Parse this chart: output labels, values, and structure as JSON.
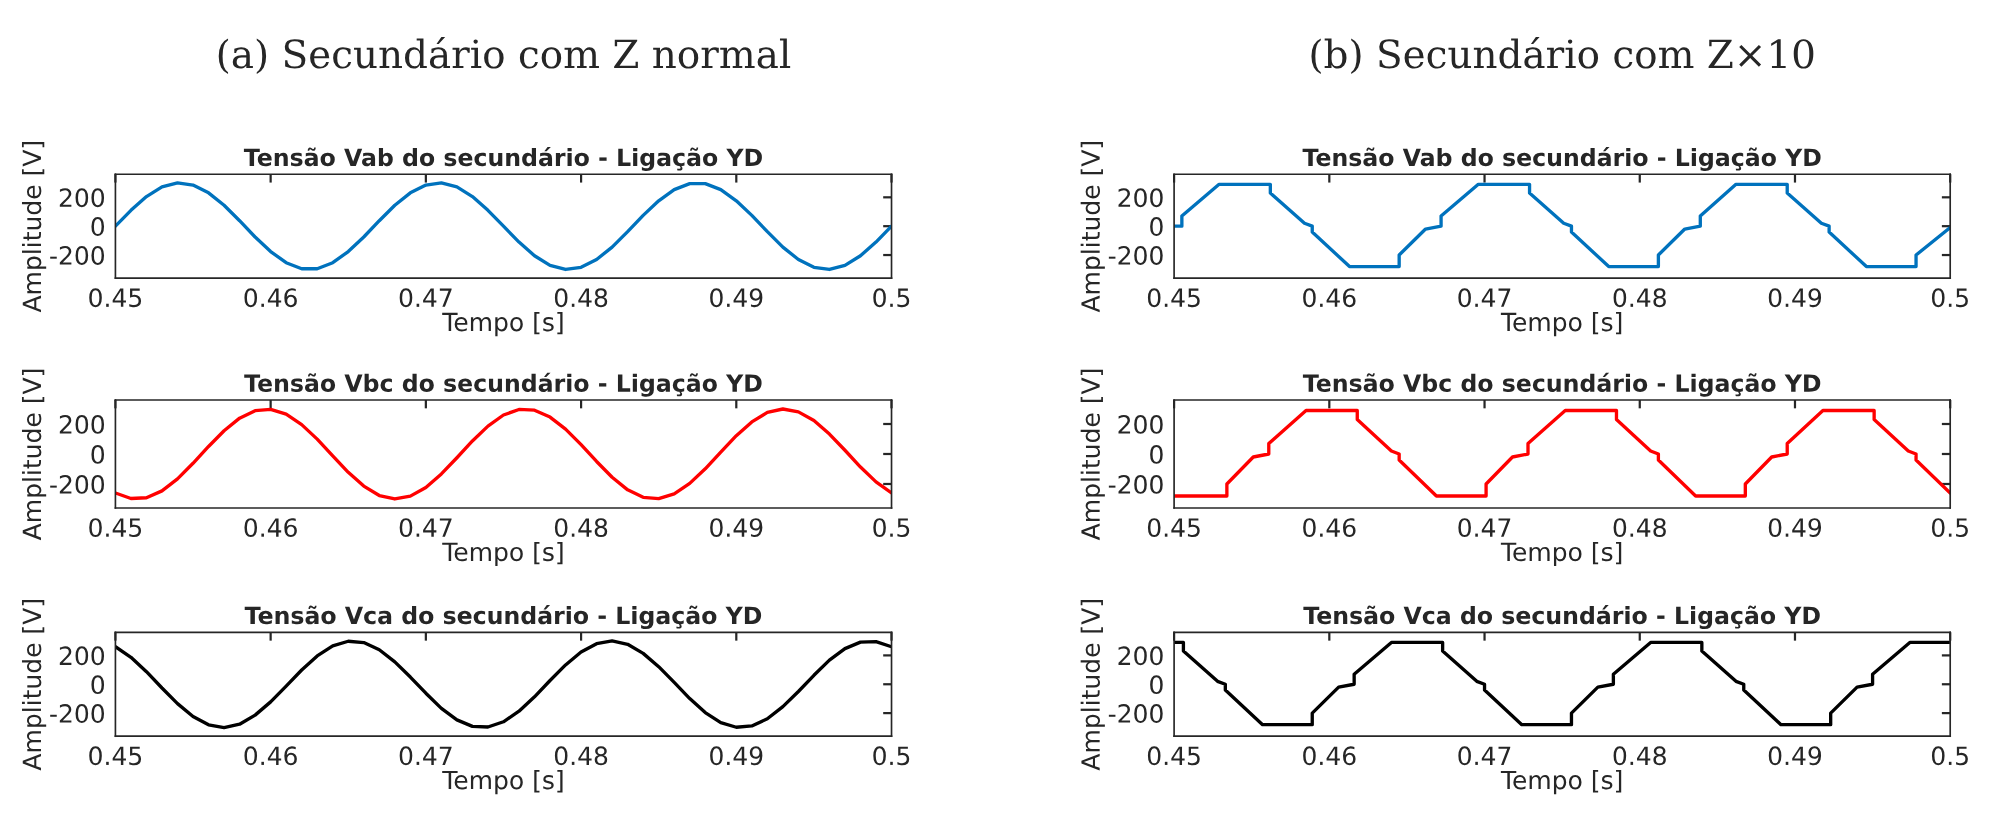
{
  "chart_data": [
    {
      "type": "line",
      "subtitle": "(a) Secundário com Z normal",
      "title": "Tensão Vab do secundário - Ligação YD",
      "xlabel": "Tempo [s]",
      "ylabel": "Amplitude [V]",
      "xlim": [
        0.45,
        0.5
      ],
      "ylim": [
        -360,
        360
      ],
      "xticks": [
        0.45,
        0.46,
        0.47,
        0.48,
        0.49,
        0.5
      ],
      "yticks": [
        -200,
        0,
        200
      ],
      "grid": false,
      "legend": false,
      "series": [
        {
          "color": "#0072bd",
          "x": [
            0.45,
            0.451,
            0.452,
            0.453,
            0.454,
            0.455,
            0.456,
            0.457,
            0.458,
            0.459,
            0.46,
            0.461,
            0.462,
            0.463,
            0.464,
            0.465,
            0.466,
            0.467,
            0.468,
            0.469,
            0.47,
            0.471,
            0.472,
            0.473,
            0.474,
            0.475,
            0.476,
            0.477,
            0.478,
            0.479,
            0.48,
            0.481,
            0.482,
            0.483,
            0.484,
            0.485,
            0.486,
            0.487,
            0.488,
            0.489,
            0.49,
            0.491,
            0.492,
            0.493,
            0.494,
            0.495,
            0.496,
            0.497,
            0.498,
            0.499,
            0.5
          ],
          "values": [
            0,
            110,
            205,
            272,
            300,
            285,
            231,
            145,
            38,
            -75,
            -176,
            -253,
            -295,
            -295,
            -253,
            -176,
            -75,
            38,
            145,
            231,
            285,
            300,
            272,
            205,
            110,
            0,
            -110,
            -205,
            -272,
            -300,
            -285,
            -231,
            -145,
            -38,
            75,
            176,
            253,
            295,
            295,
            253,
            176,
            75,
            -38,
            -145,
            -231,
            -285,
            -300,
            -272,
            -205,
            -110,
            0
          ]
        }
      ]
    },
    {
      "type": "line",
      "title": "Tensão Vbc do secundário - Ligação YD",
      "xlabel": "Tempo [s]",
      "ylabel": "Amplitude [V]",
      "xlim": [
        0.45,
        0.5
      ],
      "ylim": [
        -360,
        360
      ],
      "xticks": [
        0.45,
        0.46,
        0.47,
        0.48,
        0.49,
        0.5
      ],
      "yticks": [
        -200,
        0,
        200
      ],
      "grid": false,
      "legend": false,
      "series": [
        {
          "color": "#ff0000",
          "x": [
            0.45,
            0.451,
            0.452,
            0.453,
            0.454,
            0.455,
            0.456,
            0.457,
            0.458,
            0.459,
            0.46,
            0.461,
            0.462,
            0.463,
            0.464,
            0.465,
            0.466,
            0.467,
            0.468,
            0.469,
            0.47,
            0.471,
            0.472,
            0.473,
            0.474,
            0.475,
            0.476,
            0.477,
            0.478,
            0.479,
            0.48,
            0.481,
            0.482,
            0.483,
            0.484,
            0.485,
            0.486,
            0.487,
            0.488,
            0.489,
            0.49,
            0.491,
            0.492,
            0.493,
            0.494,
            0.495,
            0.496,
            0.497,
            0.498,
            0.499,
            0.5
          ],
          "values": [
            -260,
            -297,
            -292,
            -246,
            -166,
            -62,
            50,
            155,
            239,
            289,
            298,
            266,
            196,
            99,
            -13,
            -122,
            -214,
            -277,
            -300,
            -281,
            -223,
            -133,
            -25,
            87,
            186,
            260,
            297,
            292,
            246,
            166,
            62,
            -50,
            -155,
            -239,
            -289,
            -298,
            -266,
            -196,
            -99,
            13,
            122,
            214,
            277,
            300,
            281,
            223,
            133,
            25,
            -87,
            -186,
            -260
          ]
        }
      ]
    },
    {
      "type": "line",
      "title": "Tensão Vca do secundário - Ligação YD",
      "xlabel": "Tempo [s]",
      "ylabel": "Amplitude [V]",
      "xlim": [
        0.45,
        0.5
      ],
      "ylim": [
        -360,
        360
      ],
      "xticks": [
        0.45,
        0.46,
        0.47,
        0.48,
        0.49,
        0.5
      ],
      "yticks": [
        -200,
        0,
        200
      ],
      "grid": false,
      "legend": false,
      "series": [
        {
          "color": "#000000",
          "x": [
            0.45,
            0.451,
            0.452,
            0.453,
            0.454,
            0.455,
            0.456,
            0.457,
            0.458,
            0.459,
            0.46,
            0.461,
            0.462,
            0.463,
            0.464,
            0.465,
            0.466,
            0.467,
            0.468,
            0.469,
            0.47,
            0.471,
            0.472,
            0.473,
            0.474,
            0.475,
            0.476,
            0.477,
            0.478,
            0.479,
            0.48,
            0.481,
            0.482,
            0.483,
            0.484,
            0.485,
            0.486,
            0.487,
            0.488,
            0.489,
            0.49,
            0.491,
            0.492,
            0.493,
            0.494,
            0.495,
            0.496,
            0.497,
            0.498,
            0.499,
            0.5
          ],
          "values": [
            260,
            187,
            87,
            -26,
            -134,
            -223,
            -281,
            -300,
            -277,
            -214,
            -122,
            -13,
            99,
            196,
            266,
            298,
            289,
            239,
            155,
            50,
            -62,
            -167,
            -247,
            -292,
            -296,
            -260,
            -187,
            -87,
            26,
            134,
            223,
            281,
            300,
            277,
            214,
            122,
            13,
            -99,
            -196,
            -266,
            -298,
            -289,
            -239,
            -155,
            -50,
            62,
            167,
            247,
            292,
            296,
            260
          ]
        }
      ]
    },
    {
      "type": "line",
      "subtitle": "(b) Secundário com Z×10",
      "title": "Tensão Vab do secundário - Ligação YD",
      "xlabel": "Tempo [s]",
      "ylabel": "Amplitude [V]",
      "xlim": [
        0.45,
        0.5
      ],
      "ylim": [
        -360,
        360
      ],
      "xticks": [
        0.45,
        0.46,
        0.47,
        0.48,
        0.49,
        0.5
      ],
      "yticks": [
        -200,
        0,
        200
      ],
      "grid": false,
      "legend": false,
      "series": [
        {
          "color": "#0072bd",
          "x": [
            0.45,
            0.4505,
            0.4505,
            0.4529,
            0.4562,
            0.4562,
            0.4584,
            0.4589,
            0.4589,
            0.4613,
            0.4645,
            0.4645,
            0.4662,
            0.4672,
            0.4672,
            0.4696,
            0.4729,
            0.4729,
            0.4751,
            0.4756,
            0.4756,
            0.478,
            0.4812,
            0.4812,
            0.4829,
            0.4839,
            0.4839,
            0.4862,
            0.4895,
            0.4895,
            0.4917,
            0.4922,
            0.4922,
            0.4946,
            0.4978,
            0.4978,
            0.5
          ],
          "values": [
            0,
            0,
            70,
            290,
            290,
            230,
            20,
            0,
            -40,
            -280,
            -280,
            -200,
            -20,
            0,
            70,
            290,
            290,
            230,
            20,
            0,
            -40,
            -280,
            -280,
            -200,
            -20,
            0,
            70,
            290,
            290,
            230,
            20,
            0,
            -40,
            -280,
            -280,
            -200,
            -10
          ]
        }
      ]
    },
    {
      "type": "line",
      "title": "Tensão Vbc do secundário - Ligação YD",
      "xlabel": "Tempo [s]",
      "ylabel": "Amplitude [V]",
      "xlim": [
        0.45,
        0.5
      ],
      "ylim": [
        -360,
        360
      ],
      "xticks": [
        0.45,
        0.46,
        0.47,
        0.48,
        0.49,
        0.5
      ],
      "yticks": [
        -200,
        0,
        200
      ],
      "grid": false,
      "legend": false,
      "series": [
        {
          "color": "#ff0000",
          "x": [
            0.45,
            0.4534,
            0.4534,
            0.4551,
            0.4561,
            0.4561,
            0.4585,
            0.4618,
            0.4618,
            0.464,
            0.4645,
            0.4645,
            0.4669,
            0.4701,
            0.4701,
            0.4718,
            0.4728,
            0.4728,
            0.4752,
            0.4785,
            0.4785,
            0.4807,
            0.4812,
            0.4812,
            0.4836,
            0.4868,
            0.4868,
            0.4885,
            0.4895,
            0.4895,
            0.4918,
            0.4951,
            0.4951,
            0.4973,
            0.4978,
            0.4978,
            0.5
          ],
          "values": [
            -280,
            -280,
            -200,
            -20,
            0,
            70,
            290,
            290,
            230,
            20,
            0,
            -40,
            -280,
            -280,
            -200,
            -20,
            0,
            70,
            290,
            290,
            230,
            20,
            0,
            -40,
            -280,
            -280,
            -200,
            -20,
            0,
            70,
            290,
            290,
            230,
            20,
            0,
            -40,
            -260
          ]
        }
      ]
    },
    {
      "type": "line",
      "title": "Tensão Vca do secundário - Ligação YD",
      "xlabel": "Tempo [s]",
      "ylabel": "Amplitude [V]",
      "xlim": [
        0.45,
        0.5
      ],
      "ylim": [
        -360,
        360
      ],
      "xticks": [
        0.45,
        0.46,
        0.47,
        0.48,
        0.49,
        0.5
      ],
      "yticks": [
        -200,
        0,
        200
      ],
      "grid": false,
      "legend": false,
      "series": [
        {
          "color": "#000000",
          "x": [
            0.45,
            0.4506,
            0.4506,
            0.4528,
            0.4533,
            0.4533,
            0.4557,
            0.4589,
            0.4589,
            0.4606,
            0.4616,
            0.4616,
            0.464,
            0.4673,
            0.4673,
            0.4695,
            0.47,
            0.47,
            0.4724,
            0.4756,
            0.4756,
            0.4773,
            0.4783,
            0.4783,
            0.4807,
            0.484,
            0.484,
            0.4862,
            0.4867,
            0.4867,
            0.4891,
            0.4923,
            0.4923,
            0.494,
            0.495,
            0.495,
            0.4974,
            0.5
          ],
          "values": [
            290,
            290,
            230,
            20,
            0,
            -40,
            -280,
            -280,
            -200,
            -20,
            0,
            70,
            290,
            290,
            230,
            20,
            0,
            -40,
            -280,
            -280,
            -200,
            -20,
            0,
            70,
            290,
            290,
            230,
            20,
            0,
            -40,
            -280,
            -280,
            -200,
            -20,
            0,
            70,
            290,
            290
          ]
        }
      ]
    }
  ]
}
